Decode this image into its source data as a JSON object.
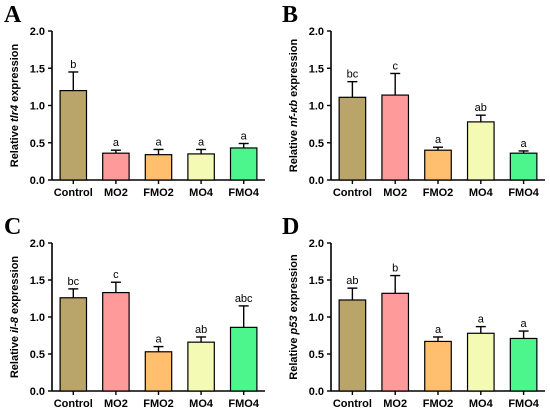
{
  "chart_data": [
    {
      "panel": "A",
      "type": "bar",
      "ylabel_prefix": "Relative ",
      "ylabel_gene": "tlr4",
      "ylabel_suffix": " expression",
      "categories": [
        "Control",
        "MO2",
        "FMO2",
        "MO4",
        "FMO4"
      ],
      "values": [
        1.2,
        0.36,
        0.34,
        0.35,
        0.43
      ],
      "errors": [
        0.25,
        0.04,
        0.07,
        0.06,
        0.06
      ],
      "sig": [
        "b",
        "a",
        "a",
        "a",
        "a"
      ],
      "ylim": [
        0,
        2.0
      ],
      "yticks": [
        "0.0",
        "0.5",
        "1.0",
        "1.5",
        "2.0"
      ]
    },
    {
      "panel": "B",
      "type": "bar",
      "ylabel_prefix": "Relative ",
      "ylabel_gene": "nf-κb",
      "ylabel_suffix": " expression",
      "categories": [
        "Control",
        "MO2",
        "FMO2",
        "MO4",
        "FMO4"
      ],
      "values": [
        1.11,
        1.14,
        0.4,
        0.78,
        0.36
      ],
      "errors": [
        0.21,
        0.29,
        0.04,
        0.09,
        0.03
      ],
      "sig": [
        "bc",
        "c",
        "a",
        "ab",
        "a"
      ],
      "ylim": [
        0,
        2.0
      ],
      "yticks": [
        "0.0",
        "0.5",
        "1.0",
        "1.5",
        "2.0"
      ]
    },
    {
      "panel": "C",
      "type": "bar",
      "ylabel_prefix": "Relative ",
      "ylabel_gene": "il-8",
      "ylabel_suffix": " expression",
      "categories": [
        "Control",
        "MO2",
        "FMO2",
        "MO4",
        "FMO4"
      ],
      "values": [
        1.26,
        1.33,
        0.53,
        0.66,
        0.86
      ],
      "errors": [
        0.12,
        0.14,
        0.07,
        0.07,
        0.29
      ],
      "sig": [
        "bc",
        "c",
        "a",
        "ab",
        "abc"
      ],
      "ylim": [
        0,
        2.0
      ],
      "yticks": [
        "0.0",
        "0.5",
        "1.0",
        "1.5",
        "2.0"
      ]
    },
    {
      "panel": "D",
      "type": "bar",
      "ylabel_prefix": "Relative ",
      "ylabel_gene": "p53",
      "ylabel_suffix": " expression",
      "categories": [
        "Control",
        "MO2",
        "FMO2",
        "MO4",
        "FMO4"
      ],
      "values": [
        1.23,
        1.32,
        0.67,
        0.78,
        0.71
      ],
      "errors": [
        0.16,
        0.24,
        0.06,
        0.09,
        0.1
      ],
      "sig": [
        "ab",
        "b",
        "a",
        "a",
        "a"
      ],
      "ylim": [
        0,
        2.0
      ],
      "yticks": [
        "0.0",
        "0.5",
        "1.0",
        "1.5",
        "2.0"
      ]
    }
  ],
  "bar_colors": [
    "#b9a46a",
    "#ff9a9a",
    "#ffbf6e",
    "#f4fab4",
    "#4cf68d"
  ]
}
